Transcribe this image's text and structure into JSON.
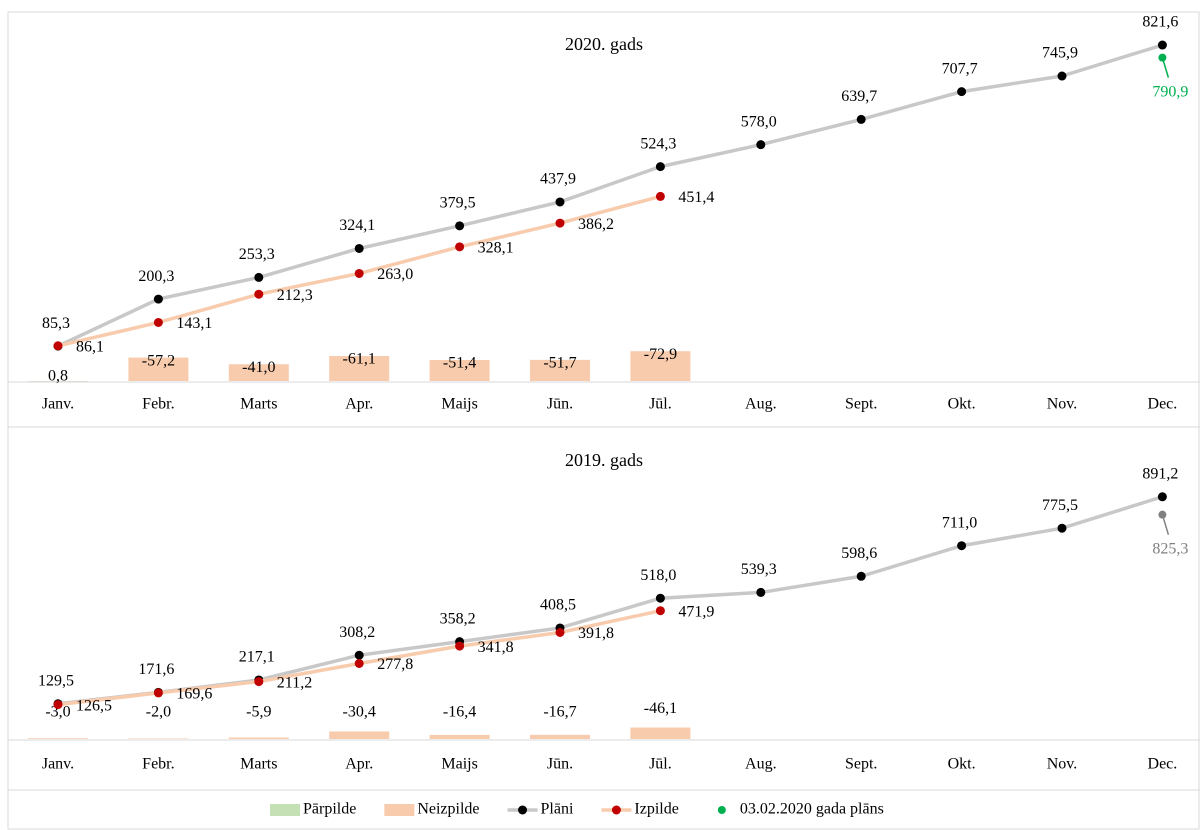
{
  "chart_data": [
    {
      "type": "combo",
      "title": "2020. gads",
      "categories": [
        "Janv.",
        "Febr.",
        "Marts",
        "Apr.",
        "Maijs",
        "Jūn.",
        "Jūl.",
        "Aug.",
        "Sept.",
        "Okt.",
        "Nov.",
        "Dec."
      ],
      "ylim": [
        0,
        900
      ],
      "y2lim": [
        0,
        -900
      ],
      "series": [
        {
          "name": "Pārpilde",
          "type": "bar",
          "axis": "y2",
          "color": "#c5e0b4",
          "values": [
            0.8,
            null,
            null,
            null,
            null,
            null,
            null,
            null,
            null,
            null,
            null,
            null
          ],
          "value_labels": [
            "0,8",
            null,
            null,
            null,
            null,
            null,
            null,
            null,
            null,
            null,
            null,
            null
          ]
        },
        {
          "name": "Neizpilde",
          "type": "bar",
          "axis": "y2",
          "color": "#f8cbad",
          "values": [
            null,
            -57.2,
            -41.0,
            -61.1,
            -51.4,
            -51.7,
            -72.9,
            null,
            null,
            null,
            null,
            null
          ],
          "value_labels": [
            null,
            "-57,2",
            "-41,0",
            "-61,1",
            "-51,4",
            "-51,7",
            "-72,9",
            null,
            null,
            null,
            null,
            null
          ]
        },
        {
          "name": "Plāni",
          "type": "line",
          "color": "#c8c8c8",
          "marker_color": "#000000",
          "values": [
            85.3,
            200.3,
            253.3,
            324.1,
            379.5,
            437.9,
            524.3,
            578.0,
            639.7,
            707.7,
            745.9,
            821.6
          ],
          "value_labels": [
            "85,3",
            "200,3",
            "253,3",
            "324,1",
            "379,5",
            "437,9",
            "524,3",
            "578,0",
            "639,7",
            "707,7",
            "745,9",
            "821,6"
          ]
        },
        {
          "name": "Izpilde",
          "type": "line",
          "color": "#f8cbad",
          "marker_color": "#c00000",
          "values": [
            86.1,
            143.1,
            212.3,
            263.0,
            328.1,
            386.2,
            451.4,
            null,
            null,
            null,
            null,
            null
          ],
          "value_labels": [
            "86,1",
            "143,1",
            "212,3",
            "263,0",
            "328,1",
            "386,2",
            "451,4",
            null,
            null,
            null,
            null,
            null
          ]
        },
        {
          "name": "03.02.2020 gada plāns",
          "type": "point",
          "color": "#00b050",
          "values": [
            null,
            null,
            null,
            null,
            null,
            null,
            null,
            null,
            null,
            null,
            null,
            790.9
          ],
          "value_labels": [
            null,
            null,
            null,
            null,
            null,
            null,
            null,
            null,
            null,
            null,
            null,
            "790,9"
          ]
        }
      ]
    },
    {
      "type": "combo",
      "title": "2019. gads",
      "categories": [
        "Janv.",
        "Febr.",
        "Marts",
        "Apr.",
        "Maijs",
        "Jūn.",
        "Jūl.",
        "Aug.",
        "Sept.",
        "Okt.",
        "Nov.",
        "Dec."
      ],
      "ylim": [
        0,
        1100
      ],
      "y2lim": [
        0,
        -1200
      ],
      "series": [
        {
          "type": "bar",
          "axis": "y2",
          "color": "#c5e0b4",
          "values": [
            null,
            null,
            null,
            null,
            null,
            null,
            null,
            null,
            null,
            null,
            null,
            null
          ]
        },
        {
          "type": "bar",
          "axis": "y2",
          "color": "#f8cbad",
          "values": [
            -3.0,
            -2.0,
            -5.9,
            -30.4,
            -16.4,
            -16.7,
            -46.1,
            null,
            null,
            null,
            null,
            null
          ],
          "value_labels": [
            "-3,0",
            "-2,0",
            "-5,9",
            "-30,4",
            "-16,4",
            "-16,7",
            "-46,1",
            null,
            null,
            null,
            null,
            null
          ]
        },
        {
          "type": "line",
          "color": "#c8c8c8",
          "marker_color": "#000000",
          "values": [
            129.5,
            171.6,
            217.1,
            308.2,
            358.2,
            408.5,
            518.0,
            539.3,
            598.6,
            711.0,
            775.5,
            891.2
          ],
          "value_labels": [
            "129,5",
            "171,6",
            "217,1",
            "308,2",
            "358,2",
            "408,5",
            "518,0",
            "539,3",
            "598,6",
            "711,0",
            "775,5",
            "891,2"
          ]
        },
        {
          "type": "line",
          "color": "#f8cbad",
          "marker_color": "#c00000",
          "values": [
            126.5,
            169.6,
            211.2,
            277.8,
            341.8,
            391.8,
            471.9,
            null,
            null,
            null,
            null,
            null
          ],
          "value_labels": [
            "126,5",
            "169,6",
            "211,2",
            "277,8",
            "341,8",
            "391,8",
            "471,9",
            null,
            null,
            null,
            null,
            null
          ]
        },
        {
          "type": "point",
          "color": "#808080",
          "values": [
            null,
            null,
            null,
            null,
            null,
            null,
            null,
            null,
            null,
            null,
            null,
            825.3
          ],
          "value_labels": [
            null,
            null,
            null,
            null,
            null,
            null,
            null,
            null,
            null,
            null,
            null,
            "825,3"
          ]
        }
      ]
    }
  ]
}
